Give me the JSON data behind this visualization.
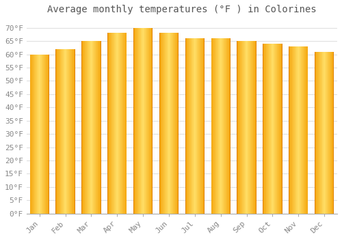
{
  "title": "Average monthly temperatures (°F ) in Colorines",
  "months": [
    "Jan",
    "Feb",
    "Mar",
    "Apr",
    "May",
    "Jun",
    "Jul",
    "Aug",
    "Sep",
    "Oct",
    "Nov",
    "Dec"
  ],
  "values": [
    60,
    62,
    65,
    68,
    70,
    68,
    66,
    66,
    65,
    64,
    63,
    61
  ],
  "bar_color_left": "#F5A800",
  "bar_color_center": "#FFD966",
  "bar_color_right": "#F5A800",
  "background_color": "#FFFFFF",
  "grid_color": "#E0E0E0",
  "yticks": [
    0,
    5,
    10,
    15,
    20,
    25,
    30,
    35,
    40,
    45,
    50,
    55,
    60,
    65,
    70
  ],
  "ylim": [
    0,
    73
  ],
  "title_fontsize": 10,
  "tick_fontsize": 8,
  "font_family": "monospace",
  "tick_color": "#888888",
  "title_color": "#555555"
}
